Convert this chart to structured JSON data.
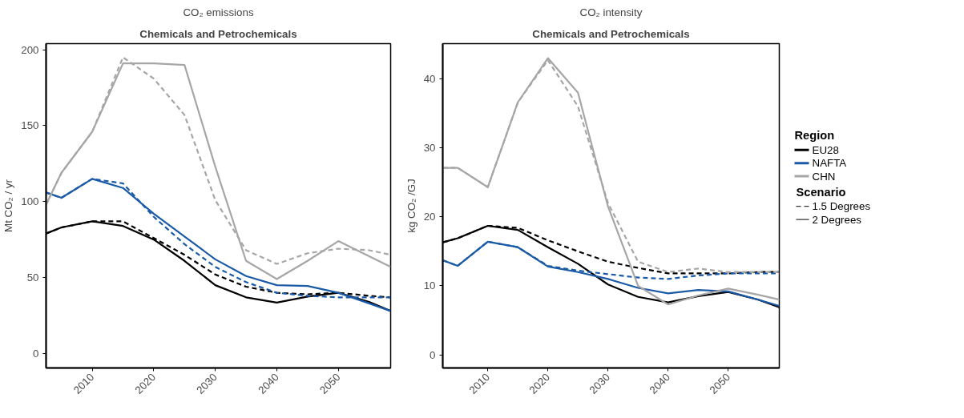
{
  "chart_data": [
    {
      "type": "line",
      "title": "CO₂ emissions",
      "subtitle": "Chemicals and Petrochemicals",
      "ylabel": "Mt CO₂ / yr",
      "x": [
        2002.5,
        2005,
        2010,
        2015,
        2020,
        2025,
        2030,
        2035,
        2040,
        2045,
        2050,
        2055,
        2058.5
      ],
      "xlim": [
        2002.5,
        2058.5
      ],
      "xticks": [
        2010,
        2020,
        2030,
        2040,
        2050
      ],
      "ylim": [
        -9.5,
        204
      ],
      "yticks": [
        0,
        50,
        100,
        150,
        200
      ],
      "grid": false,
      "legend": false,
      "series": [
        {
          "color": "#000000",
          "line_style": "solid",
          "values": [
            79,
            83,
            87,
            84,
            75,
            61,
            45,
            37,
            33.5,
            37.5,
            40,
            34,
            28
          ]
        },
        {
          "color": "#000000",
          "line_style": "dashed",
          "values": [
            79,
            83,
            87,
            87,
            76,
            65,
            52,
            44,
            40,
            39,
            40,
            38,
            37
          ]
        },
        {
          "color": "#1a5aa6",
          "line_style": "solid",
          "values": [
            106,
            102.5,
            115,
            109,
            92,
            77,
            62,
            51,
            45,
            44.5,
            40,
            33,
            28
          ]
        },
        {
          "color": "#1a5aa6",
          "line_style": "dashed",
          "values": [
            106,
            102.5,
            115,
            112,
            90,
            72,
            57,
            47,
            40,
            38,
            37,
            37,
            37
          ]
        },
        {
          "color": "#a6a6a6",
          "line_style": "solid",
          "values": [
            98,
            119,
            146,
            191,
            191,
            190,
            123,
            61,
            49,
            61,
            74,
            64,
            57
          ]
        },
        {
          "color": "#a6a6a6",
          "line_style": "dashed",
          "values": [
            98,
            119,
            146,
            195,
            181,
            157,
            101,
            68,
            59,
            66,
            69,
            68,
            65
          ]
        }
      ]
    },
    {
      "type": "line",
      "title": "CO₂ intensity",
      "subtitle": "Chemicals and Petrochemicals",
      "ylabel": "kg CO₂ /GJ",
      "x": [
        2002.5,
        2005,
        2010,
        2015,
        2020,
        2025,
        2030,
        2035,
        2040,
        2045,
        2050,
        2055,
        2058.5
      ],
      "xlim": [
        2002.5,
        2058.5
      ],
      "xticks": [
        2010,
        2020,
        2030,
        2040,
        2050
      ],
      "ylim": [
        -1.9,
        45.1
      ],
      "yticks": [
        0,
        10,
        20,
        30,
        40
      ],
      "grid": false,
      "legend": "right",
      "legend_title": "Region",
      "annotations": [
        "Scenario",
        "1.5 Degrees",
        "2 Degrees"
      ],
      "series": [
        {
          "name": "EU28",
          "color": "#000000",
          "line_style": "solid",
          "values": [
            16.3,
            16.9,
            18.7,
            18.1,
            15.6,
            13.2,
            10.2,
            8.4,
            7.6,
            8.5,
            9.1,
            8,
            6.9
          ]
        },
        {
          "color": "#000000",
          "line_style": "dashed",
          "values": [
            16.3,
            16.9,
            18.7,
            18.4,
            16.6,
            15,
            13.5,
            12.6,
            11.8,
            11.8,
            11.8,
            12,
            12
          ]
        },
        {
          "name": "NAFTA",
          "color": "#1a5aa6",
          "line_style": "solid",
          "values": [
            13.7,
            12.9,
            16.4,
            15.6,
            12.8,
            12.0,
            11,
            9.7,
            8.9,
            9.4,
            9.2,
            8,
            7.1
          ]
        },
        {
          "color": "#1a5aa6",
          "line_style": "dashed",
          "values": [
            13.7,
            12.9,
            16.4,
            15.6,
            12.9,
            12.2,
            11.7,
            11.2,
            11,
            11.5,
            11.8,
            11.8,
            11.8
          ]
        },
        {
          "name": "CHN",
          "color": "#a6a6a6",
          "line_style": "solid",
          "values": [
            27.1,
            27.1,
            24.3,
            36.6,
            43,
            38,
            21.5,
            10,
            7.3,
            8.6,
            9.6,
            8.7,
            8
          ]
        },
        {
          "color": "#a6a6a6",
          "line_style": "dashed",
          "values": [
            27.1,
            27.1,
            24.3,
            36.6,
            42.7,
            36,
            22,
            13.5,
            12,
            12.5,
            12,
            12,
            12
          ]
        }
      ]
    }
  ]
}
